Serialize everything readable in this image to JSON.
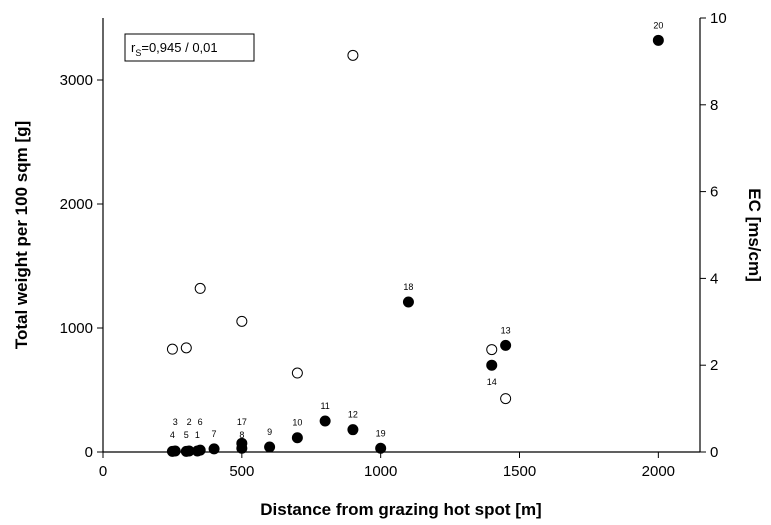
{
  "chart_data": {
    "type": "scatter",
    "xlabel": "Distance from grazing hot spot [m]",
    "ylabel": "Total weight per 100 sqm [g]",
    "y2label": "EC [ms/cm]",
    "xlim": [
      0,
      2150
    ],
    "ylim": [
      0,
      3500
    ],
    "y2lim": [
      0,
      10
    ],
    "x_ticks": [
      0,
      500,
      1000,
      1500,
      2000
    ],
    "y_ticks": [
      0,
      1000,
      2000,
      3000
    ],
    "y2_ticks": [
      0,
      2,
      4,
      6,
      8,
      10
    ],
    "annotation": {
      "prefix": "r",
      "subscript": "S",
      "text": "=0,945 / 0,01"
    },
    "series": [
      {
        "marker": "filled-circle",
        "axis": "left",
        "points": [
          {
            "label": "4",
            "x": 250,
            "y": 5
          },
          {
            "label": "3",
            "x": 260,
            "y": 8
          },
          {
            "label": "5",
            "x": 300,
            "y": 5
          },
          {
            "label": "2",
            "x": 310,
            "y": 8
          },
          {
            "label": "1",
            "x": 340,
            "y": 8
          },
          {
            "label": "6",
            "x": 350,
            "y": 15
          },
          {
            "label": "7",
            "x": 400,
            "y": 25
          },
          {
            "label": "8",
            "x": 500,
            "y": 30
          },
          {
            "label": "17",
            "x": 500,
            "y": 70
          },
          {
            "label": "9",
            "x": 600,
            "y": 40
          },
          {
            "label": "10",
            "x": 700,
            "y": 115
          },
          {
            "label": "11",
            "x": 800,
            "y": 250
          },
          {
            "label": "12",
            "x": 900,
            "y": 180
          },
          {
            "label": "19",
            "x": 1000,
            "y": 30
          },
          {
            "label": "18",
            "x": 1100,
            "y": 1210
          },
          {
            "label": "14",
            "x": 1400,
            "y": 700
          },
          {
            "label": "13",
            "x": 1450,
            "y": 860
          },
          {
            "label": "20",
            "x": 2000,
            "y": 3320
          }
        ]
      },
      {
        "marker": "open-circle",
        "axis": "right",
        "points": [
          {
            "x": 250,
            "y": 2.37
          },
          {
            "x": 300,
            "y": 2.4
          },
          {
            "x": 350,
            "y": 3.77
          },
          {
            "x": 500,
            "y": 3.01
          },
          {
            "x": 700,
            "y": 1.82
          },
          {
            "x": 900,
            "y": 9.14
          },
          {
            "x": 1400,
            "y": 2.36
          },
          {
            "x": 1450,
            "y": 1.23
          }
        ]
      }
    ]
  }
}
